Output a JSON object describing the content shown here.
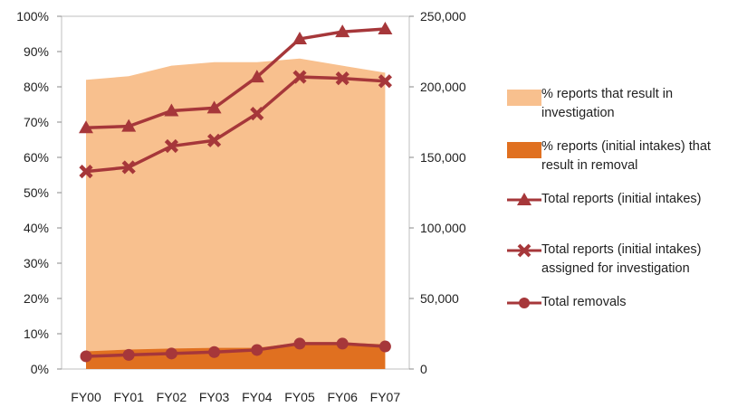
{
  "chart_data": {
    "type": "area",
    "categories": [
      "FY00",
      "FY01",
      "FY02",
      "FY03",
      "FY04",
      "FY05",
      "FY06",
      "FY07"
    ],
    "y_left": {
      "ticks": [
        "0%",
        "10%",
        "20%",
        "30%",
        "40%",
        "50%",
        "60%",
        "70%",
        "80%",
        "90%",
        "100%"
      ],
      "range": [
        0,
        100
      ]
    },
    "y_right": {
      "ticks": [
        "0",
        "50,000",
        "100,000",
        "150,000",
        "200,000",
        "250,000"
      ],
      "range": [
        0,
        250000
      ]
    },
    "series": [
      {
        "name": "% reports that result in investigation",
        "type": "area",
        "axis": "left",
        "color": "#f8c08e",
        "values": [
          82,
          83,
          86,
          87,
          87,
          88,
          86,
          84
        ]
      },
      {
        "name": "% reports (initial intakes) that result in removal",
        "type": "area",
        "axis": "left",
        "color": "#e07020",
        "values": [
          5,
          5.5,
          5.8,
          6,
          6,
          7.5,
          7.5,
          7
        ]
      },
      {
        "name": "Total reports (initial intakes)",
        "type": "line",
        "axis": "right",
        "color": "#a6373a",
        "marker": "triangle",
        "values": [
          171000,
          172000,
          183000,
          185000,
          207000,
          234000,
          239000,
          241000
        ]
      },
      {
        "name": "Total reports (initial intakes) assigned for investigation",
        "type": "line",
        "axis": "right",
        "color": "#a6373a",
        "marker": "x",
        "values": [
          140000,
          143000,
          158000,
          162000,
          181000,
          207000,
          206000,
          204000
        ]
      },
      {
        "name": "Total removals",
        "type": "line",
        "axis": "right",
        "color": "#a6373a",
        "marker": "circle",
        "values": [
          9000,
          10000,
          11000,
          12000,
          13500,
          18000,
          18000,
          16000
        ]
      }
    ],
    "legend_position": "right"
  }
}
